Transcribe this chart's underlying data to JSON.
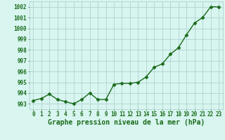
{
  "x": [
    0,
    1,
    2,
    3,
    4,
    5,
    6,
    7,
    8,
    9,
    10,
    11,
    12,
    13,
    14,
    15,
    16,
    17,
    18,
    19,
    20,
    21,
    22,
    23
  ],
  "y": [
    993.3,
    993.5,
    993.9,
    993.4,
    993.2,
    993.0,
    993.4,
    994.0,
    993.4,
    993.4,
    994.8,
    994.9,
    994.9,
    995.0,
    995.5,
    996.4,
    996.7,
    997.6,
    998.2,
    999.4,
    1000.5,
    1001.0,
    1002.0,
    1002.0
  ],
  "line_color": "#1a6b1a",
  "marker": "D",
  "marker_size": 2.5,
  "line_width": 1.0,
  "background_color": "#d8f5f0",
  "grid_color": "#a8ccc8",
  "xlabel": "Graphe pression niveau de la mer (hPa)",
  "xlabel_fontsize": 7,
  "ylabel_ticks": [
    993,
    994,
    995,
    996,
    997,
    998,
    999,
    1000,
    1001,
    1002
  ],
  "xtick_labels": [
    "0",
    "1",
    "2",
    "3",
    "4",
    "5",
    "6",
    "7",
    "8",
    "9",
    "10",
    "11",
    "12",
    "13",
    "14",
    "15",
    "16",
    "17",
    "18",
    "19",
    "20",
    "21",
    "22",
    "23"
  ],
  "ylim": [
    992.5,
    1002.5
  ],
  "xlim": [
    -0.5,
    23.5
  ],
  "tick_fontsize": 5.5,
  "tick_color": "#1a6b1a"
}
